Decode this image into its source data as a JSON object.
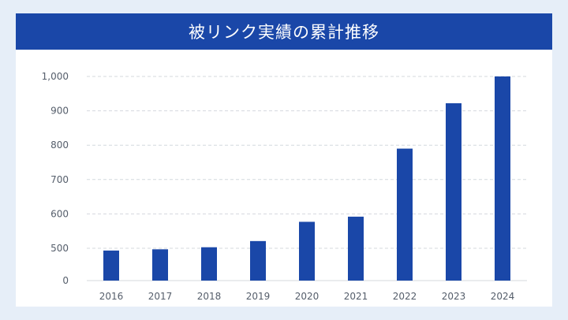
{
  "colors": {
    "background": "#e6eef8",
    "card": "#ffffff",
    "title_bar": "#1a47a8",
    "bar": "#1a47a8",
    "grid": "#d4d8de"
  },
  "chart_data": {
    "type": "bar",
    "title": "被リンク実績の累計推移",
    "xlabel": "",
    "ylabel": "",
    "categories": [
      "2016",
      "2017",
      "2018",
      "2019",
      "2020",
      "2021",
      "2022",
      "2023",
      "2024"
    ],
    "values": [
      465,
      484,
      503,
      521,
      577,
      592,
      790,
      922,
      1000
    ],
    "y_axis": {
      "ticks": [
        0,
        500,
        600,
        700,
        800,
        900,
        1000
      ],
      "tick_labels": [
        "0",
        "500",
        "600",
        "700",
        "800",
        "900",
        "1,000"
      ],
      "broken_axis": true
    },
    "grid": true,
    "legend": "none"
  }
}
